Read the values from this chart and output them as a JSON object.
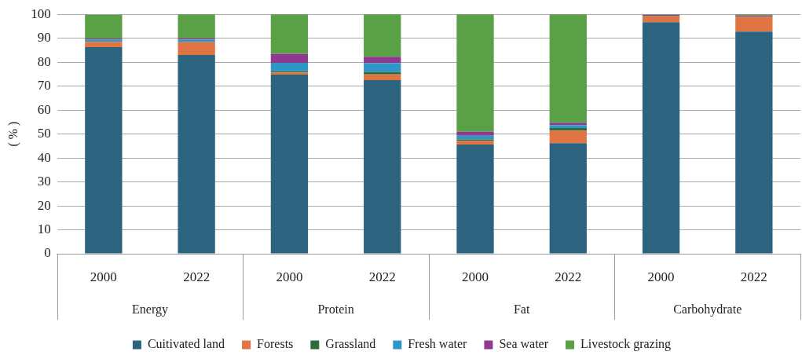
{
  "chart_data": {
    "type": "bar",
    "stacked": true,
    "ylabel": "( % )",
    "categories": [
      "2000",
      "2022",
      "2000",
      "2022",
      "2000",
      "2022",
      "2000",
      "2022"
    ],
    "annotations": [
      "Energy",
      "Protein",
      "Fat",
      "Carbohydrate"
    ],
    "series": [
      {
        "name": "Cuitivated land",
        "color": "#2c6480",
        "values": [
          86.3,
          83.0,
          74.8,
          72.5,
          45.6,
          46.2,
          96.7,
          92.8
        ]
      },
      {
        "name": "Forests",
        "color": "#e07443",
        "values": [
          2.2,
          5.3,
          0.9,
          2.4,
          1.6,
          5.2,
          2.5,
          6.1
        ]
      },
      {
        "name": "Grassland",
        "color": "#2e6b3a",
        "values": [
          null,
          0.2,
          0.5,
          1.0,
          0.5,
          1.1,
          0.1,
          0.1
        ]
      },
      {
        "name": "Fresh water",
        "color": "#2e97c8",
        "values": [
          0.9,
          0.9,
          3.5,
          3.7,
          1.6,
          1.2,
          0.1,
          0.1
        ]
      },
      {
        "name": "Sea water",
        "color": "#8e3a8e",
        "values": [
          0.5,
          0.6,
          3.8,
          2.7,
          1.6,
          1.0,
          0.3,
          0.4
        ]
      },
      {
        "name": "Livestock grazing",
        "color": "#5aa046",
        "values": [
          9.9,
          10.0,
          16.5,
          17.7,
          49.1,
          45.3,
          0.3,
          0.5
        ]
      }
    ],
    "ylim": [
      0,
      100
    ],
    "yticks": [
      0,
      10,
      20,
      30,
      40,
      50,
      60,
      70,
      80,
      90,
      100
    ],
    "grid": "y",
    "legend": "bottom"
  }
}
